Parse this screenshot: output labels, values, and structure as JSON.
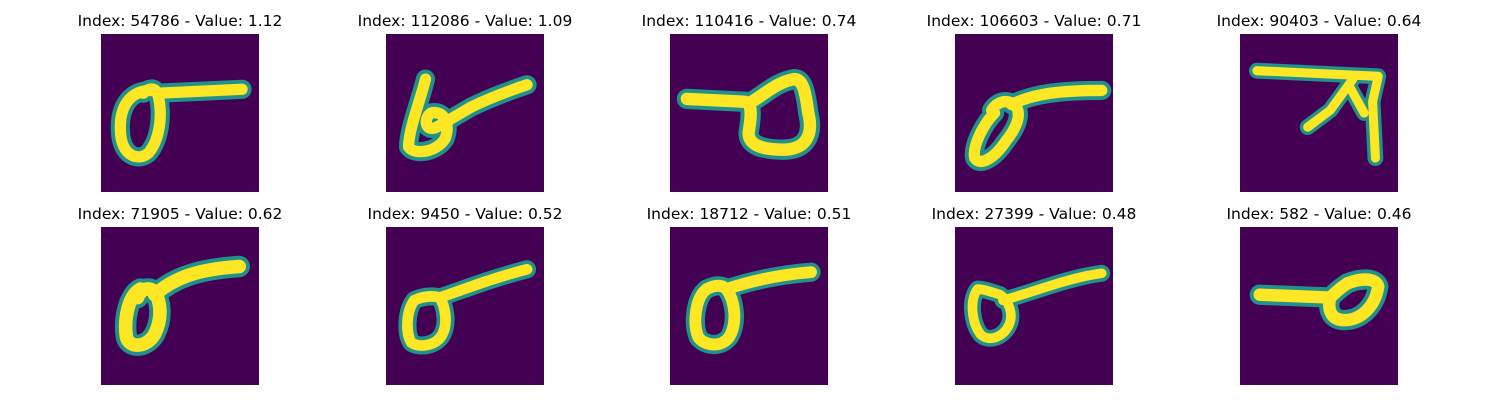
{
  "colors": {
    "background": "#440154",
    "stroke_edge": "#21918c",
    "stroke_core": "#fde725",
    "figure_background": "#ffffff"
  },
  "panels": [
    {
      "title": "Index: 54786 - Value: 1.12",
      "glyph": "loop-left-bar-right"
    },
    {
      "title": "Index: 112086 - Value: 1.09",
      "glyph": "small-loop-rising-bar"
    },
    {
      "title": "Index: 110416 - Value: 0.74",
      "glyph": "bar-left-loop-right"
    },
    {
      "title": "Index: 106603 - Value: 0.71",
      "glyph": "slanted-loop-bar"
    },
    {
      "title": "Index: 90403 - Value: 0.64",
      "glyph": "seven-like-stroke"
    },
    {
      "title": "Index: 71905 - Value: 0.62",
      "glyph": "loop-left-bar-right"
    },
    {
      "title": "Index: 9450 - Value: 0.52",
      "glyph": "loop-left-bar-right"
    },
    {
      "title": "Index: 18712 - Value: 0.51",
      "glyph": "loop-left-bar-right"
    },
    {
      "title": "Index: 27399 - Value: 0.48",
      "glyph": "loop-left-thin-bar"
    },
    {
      "title": "Index: 582 - Value: 0.46",
      "glyph": "bar-left-loop-right"
    }
  ]
}
